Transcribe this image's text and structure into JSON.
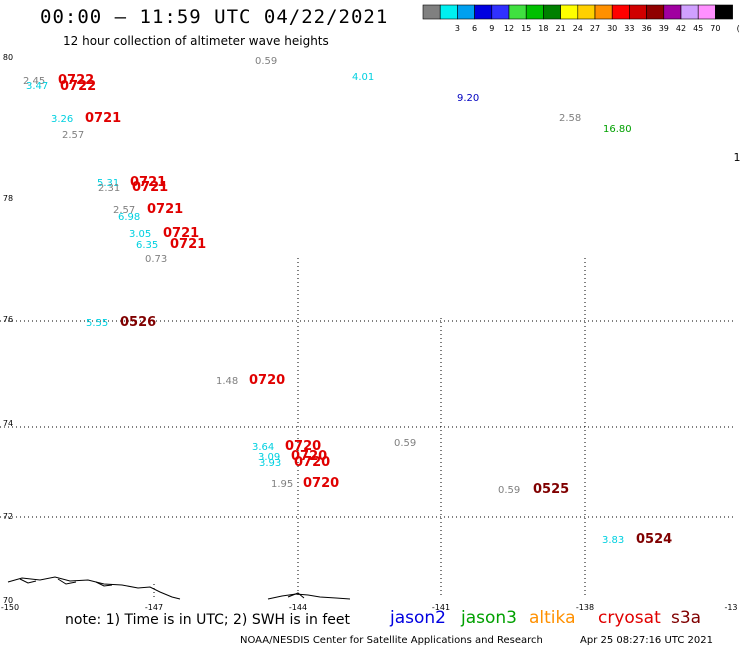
{
  "header": {
    "title": "00:00 – 11:59 UTC 04/22/2021",
    "subtitle": "12 hour collection of altimeter wave heights"
  },
  "scale": {
    "unit": "(ft)",
    "bins": [
      {
        "color": "#808080",
        "label": ""
      },
      {
        "color": "#00f0f0",
        "label": "3"
      },
      {
        "color": "#00a0f0",
        "label": "6"
      },
      {
        "color": "#0000e0",
        "label": "9"
      },
      {
        "color": "#3030ff",
        "label": "12"
      },
      {
        "color": "#40e040",
        "label": "15"
      },
      {
        "color": "#00c000",
        "label": "18"
      },
      {
        "color": "#008000",
        "label": "21"
      },
      {
        "color": "#ffff00",
        "label": "24"
      },
      {
        "color": "#ffd000",
        "label": "27"
      },
      {
        "color": "#ff9000",
        "label": "30"
      },
      {
        "color": "#ff0000",
        "label": "33"
      },
      {
        "color": "#d00000",
        "label": "36"
      },
      {
        "color": "#900000",
        "label": "39"
      },
      {
        "color": "#a000a0",
        "label": "42"
      },
      {
        "color": "#d0a0ff",
        "label": "45"
      },
      {
        "color": "#ff90ff",
        "label": "70"
      },
      {
        "color": "#000000",
        "label": ""
      }
    ]
  },
  "axes": {
    "lat_labels": [
      "80",
      "78",
      "76",
      "74",
      "72",
      "70"
    ],
    "lon_labels": [
      "-150",
      "-147",
      "-144",
      "-141",
      "-138",
      "-13"
    ],
    "edge_label": "1"
  },
  "observations": [
    {
      "text": "0.59",
      "color": "#808080"
    },
    {
      "text": "2.45",
      "color": "#808080"
    },
    {
      "text": "3.47",
      "color": "#00d0e0"
    },
    {
      "text": "0722",
      "color": "#e00000"
    },
    {
      "text": "0722",
      "color": "#e00000"
    },
    {
      "text": "4.01",
      "color": "#00d0e0"
    },
    {
      "text": "9.20",
      "color": "#0000c0"
    },
    {
      "text": "3.26",
      "color": "#00d0e0"
    },
    {
      "text": "0721",
      "color": "#e00000"
    },
    {
      "text": "2.57",
      "color": "#808080"
    },
    {
      "text": "2.58",
      "color": "#808080"
    },
    {
      "text": "16.80",
      "color": "#00a000"
    },
    {
      "text": "5.31",
      "color": "#00d0e0"
    },
    {
      "text": "0721",
      "color": "#e00000"
    },
    {
      "text": "2.31",
      "color": "#808080"
    },
    {
      "text": "0721",
      "color": "#e00000"
    },
    {
      "text": "2.57",
      "color": "#808080"
    },
    {
      "text": "6.98",
      "color": "#00d0e0"
    },
    {
      "text": "0721",
      "color": "#e00000"
    },
    {
      "text": "3.05",
      "color": "#00d0e0"
    },
    {
      "text": "0721",
      "color": "#e00000"
    },
    {
      "text": "6.35",
      "color": "#00d0e0"
    },
    {
      "text": "0721",
      "color": "#e00000"
    },
    {
      "text": "0.73",
      "color": "#808080"
    },
    {
      "text": "5.55",
      "color": "#00d0e0"
    },
    {
      "text": "0526",
      "color": "#800000"
    },
    {
      "text": "1.48",
      "color": "#808080"
    },
    {
      "text": "0720",
      "color": "#e00000"
    },
    {
      "text": "3.64",
      "color": "#00d0e0"
    },
    {
      "text": "0720",
      "color": "#e00000"
    },
    {
      "text": "0.59",
      "color": "#808080"
    },
    {
      "text": "3.09",
      "color": "#00d0e0"
    },
    {
      "text": "0720",
      "color": "#e00000"
    },
    {
      "text": "3.93",
      "color": "#00d0e0"
    },
    {
      "text": "0720",
      "color": "#e00000"
    },
    {
      "text": "1.95",
      "color": "#808080"
    },
    {
      "text": "0720",
      "color": "#e00000"
    },
    {
      "text": "0.59",
      "color": "#808080"
    },
    {
      "text": "0525",
      "color": "#800000"
    },
    {
      "text": "3.83",
      "color": "#00d0e0"
    },
    {
      "text": "0524",
      "color": "#800000"
    }
  ],
  "footer": {
    "note": "note: 1) Time is in UTC; 2) SWH is in feet",
    "missions": [
      {
        "name": "jason2",
        "color": "#0000e0"
      },
      {
        "name": "jason3",
        "color": "#00a000"
      },
      {
        "name": "altika",
        "color": "#ff9000"
      },
      {
        "name": "cryosat",
        "color": "#e00000"
      },
      {
        "name": "s3a",
        "color": "#800000"
      }
    ],
    "credits": "NOAA/NESDIS Center for Satellite Applications and Research",
    "timestamp": "Apr 25 08:27:16 UTC 2021"
  }
}
